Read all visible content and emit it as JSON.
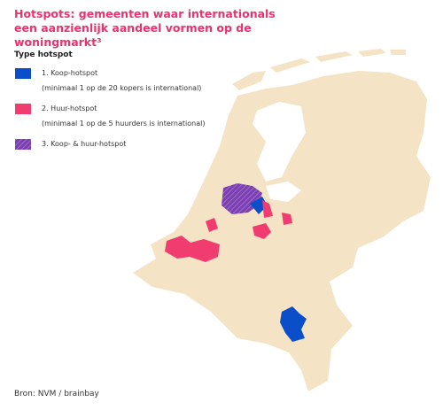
{
  "header": {
    "title": "Hotspots: gemeenten waar internationals een aanzienlijk aandeel vormen op de woningmarkt³"
  },
  "legend": {
    "title": "Type hotspot",
    "items": [
      {
        "label": "1. Koop-hotspot",
        "note": "(minimaal 1 op de 20 kopers is international)"
      },
      {
        "label": "2. Huur-hotspot",
        "note": "(minimaal 1 op de 5 huurders is international)"
      },
      {
        "label": "3. Koop- & huur-hotspot"
      }
    ]
  },
  "source": "Bron: NVM / brainbay"
}
